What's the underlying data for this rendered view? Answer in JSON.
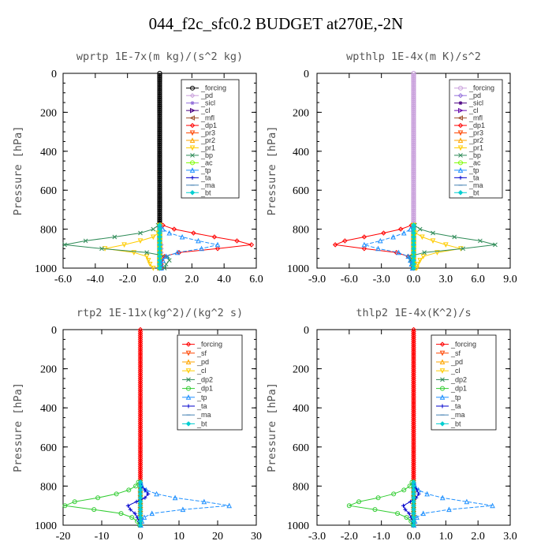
{
  "title": "044_f2c_sfc0.2  BUDGET at270E,-2N",
  "chart_data": [
    {
      "type": "line",
      "title": "wprtp  1E-7x(m kg)/(s^2 kg)",
      "ylabel": "Pressure [hPa]",
      "xlim": [
        -6.0,
        6.0
      ],
      "xticks": [
        -6,
        -4,
        -2,
        0,
        2,
        4,
        6
      ],
      "xticklabels": [
        "-6.0",
        "-4.0",
        "-2.0",
        "0.0",
        "2.0",
        "4.0",
        "6.0"
      ],
      "ylim": [
        0,
        1000
      ],
      "yticks": [
        0,
        200,
        400,
        600,
        800,
        1000
      ],
      "legend_loc": "top-right",
      "y": [
        780,
        800,
        820,
        840,
        860,
        880,
        900,
        920,
        940,
        960,
        980,
        1000
      ],
      "series": [
        {
          "name": "_forcing",
          "color": "#000000",
          "marker": "circle",
          "values": [
            0,
            0,
            0,
            0,
            0,
            0,
            0,
            0,
            0,
            0,
            0,
            0
          ]
        },
        {
          "name": "_pd",
          "color": "#c9a0dc",
          "marker": "diamond",
          "values": [
            0,
            0,
            0,
            0,
            0,
            0.1,
            0.1,
            0.1,
            0.1,
            0.1,
            0.1,
            0.1
          ]
        },
        {
          "name": "_sicl",
          "color": "#9370db",
          "marker": "star",
          "values": [
            0,
            0,
            0,
            0,
            0,
            0,
            0,
            0,
            0,
            0,
            0,
            0
          ]
        },
        {
          "name": "_cl",
          "color": "#4b0082",
          "marker": "triangle-right",
          "values": [
            0,
            0,
            0,
            0,
            0,
            0,
            0,
            0,
            0,
            0,
            0,
            0
          ]
        },
        {
          "name": "_mfl",
          "color": "#a0522d",
          "marker": "triangle-left",
          "values": [
            0,
            0,
            0,
            0,
            0,
            0,
            0,
            0,
            0,
            0,
            0,
            0
          ]
        },
        {
          "name": "_dp1",
          "color": "#ff0000",
          "marker": "diamond",
          "values": [
            0.2,
            0.9,
            2.1,
            3.4,
            4.8,
            5.7,
            3.6,
            1.2,
            0.3,
            0.1,
            0.1,
            0.1
          ]
        },
        {
          "name": "_pr3",
          "color": "#ff4500",
          "marker": "triangle-down",
          "values": [
            0,
            0,
            0,
            0,
            0,
            0,
            0,
            0,
            0,
            0,
            0,
            0
          ]
        },
        {
          "name": "_pr2",
          "color": "#ffa500",
          "marker": "triangle-up",
          "values": [
            0,
            0,
            0,
            0,
            0,
            0,
            0,
            0,
            0,
            0,
            0,
            0
          ]
        },
        {
          "name": "_pr1",
          "color": "#ffcc00",
          "marker": "triangle-down",
          "values": [
            0,
            0,
            -0.1,
            -0.4,
            -1.2,
            -2.2,
            -3.4,
            -1.6,
            -0.8,
            -0.7,
            -0.6,
            -0.4
          ]
        },
        {
          "name": "_bp",
          "color": "#2e8b57",
          "marker": "x",
          "values": [
            -0.1,
            -0.4,
            -1.2,
            -2.8,
            -4.6,
            -5.9,
            -3.6,
            -0.8,
            0.5,
            0.6,
            0.4,
            0.3
          ]
        },
        {
          "name": "_ac",
          "color": "#7cfc00",
          "marker": "circle",
          "values": [
            0,
            0,
            0,
            0,
            0,
            0,
            0,
            0,
            0,
            0,
            0,
            0
          ]
        },
        {
          "name": "_tp",
          "color": "#1e90ff",
          "marker": "triangle-up",
          "values": [
            0,
            0.2,
            0.6,
            1.4,
            2.4,
            3.6,
            2.6,
            1.1,
            0.4,
            0.2,
            0.1,
            0.1
          ]
        },
        {
          "name": "_ta",
          "color": "#0000cd",
          "marker": "plus",
          "values": [
            0,
            0,
            0,
            0,
            0,
            0,
            0,
            0,
            0,
            0,
            0,
            0
          ]
        },
        {
          "name": "_ma",
          "color": "#4682b4",
          "marker": "dash",
          "values": [
            0,
            0,
            0,
            0,
            0,
            0,
            0,
            0,
            0,
            0,
            0,
            0
          ]
        },
        {
          "name": "_bt",
          "color": "#00ced1",
          "marker": "diamond-filled",
          "values": [
            0,
            0,
            0,
            0,
            0,
            0,
            0,
            0,
            0,
            0,
            0,
            0
          ]
        }
      ]
    },
    {
      "type": "line",
      "title": "wpthlp  1E-4x(m K)/s^2",
      "ylabel": "Pressure [hPa]",
      "xlim": [
        -9.0,
        9.0
      ],
      "xticks": [
        -9,
        -6,
        -3,
        0,
        3,
        6,
        9
      ],
      "xticklabels": [
        "-9.0",
        "-6.0",
        "-3.0",
        "0.0",
        "3.0",
        "6.0",
        "9.0"
      ],
      "ylim": [
        0,
        1000
      ],
      "yticks": [
        0,
        200,
        400,
        600,
        800,
        1000
      ],
      "legend_loc": "top-right",
      "y": [
        780,
        800,
        820,
        840,
        860,
        880,
        900,
        920,
        940,
        960,
        980,
        1000
      ],
      "series": [
        {
          "name": "_forcing",
          "color": "#c9a0dc",
          "marker": "circle",
          "values": [
            0,
            0,
            0,
            0,
            0,
            0,
            0,
            0,
            0,
            0,
            0,
            0
          ]
        },
        {
          "name": "_pd",
          "color": "#9370db",
          "marker": "diamond",
          "values": [
            0,
            0,
            0,
            0,
            0,
            0,
            0,
            0,
            0,
            0,
            0,
            0
          ]
        },
        {
          "name": "_sicl",
          "color": "#4b0082",
          "marker": "star",
          "values": [
            0,
            0,
            0,
            0,
            0,
            0,
            0,
            0,
            0,
            0,
            0,
            0
          ]
        },
        {
          "name": "_cl",
          "color": "#6a0dad",
          "marker": "triangle-right",
          "values": [
            0,
            0,
            0,
            0,
            0,
            0,
            0,
            0,
            0,
            0,
            0,
            0
          ]
        },
        {
          "name": "_mfl",
          "color": "#a0522d",
          "marker": "triangle-left",
          "values": [
            0,
            0,
            0,
            0,
            0,
            0,
            0,
            0,
            0,
            0,
            0,
            0
          ]
        },
        {
          "name": "_dp1",
          "color": "#ff0000",
          "marker": "diamond",
          "values": [
            -0.2,
            -1.2,
            -2.8,
            -4.6,
            -6.4,
            -7.3,
            -4.6,
            -1.6,
            -0.5,
            -0.2,
            -0.1,
            -0.1
          ]
        },
        {
          "name": "_pr3",
          "color": "#ff4500",
          "marker": "triangle-down",
          "values": [
            0,
            0,
            0,
            0,
            0,
            0,
            0,
            0,
            0,
            0,
            0,
            0
          ]
        },
        {
          "name": "_pr2",
          "color": "#ffa500",
          "marker": "triangle-up",
          "values": [
            0,
            0,
            0,
            0,
            0,
            0,
            0,
            0,
            0,
            0,
            0,
            0
          ]
        },
        {
          "name": "_pr1",
          "color": "#ffcc00",
          "marker": "triangle-down",
          "values": [
            0,
            0,
            0.2,
            0.8,
            1.8,
            3.0,
            4.4,
            2.2,
            0.9,
            0.6,
            0.4,
            0.3
          ]
        },
        {
          "name": "_bp",
          "color": "#2e8b57",
          "marker": "x",
          "values": [
            0.1,
            0.6,
            1.8,
            3.8,
            6.2,
            7.6,
            4.6,
            1.0,
            -0.4,
            -0.3,
            -0.2,
            -0.1
          ]
        },
        {
          "name": "_ac",
          "color": "#7cfc00",
          "marker": "circle",
          "values": [
            0,
            0,
            0,
            0,
            0,
            0,
            0,
            0,
            0,
            0,
            0,
            0
          ]
        },
        {
          "name": "_tp",
          "color": "#1e90ff",
          "marker": "triangle-up",
          "values": [
            0,
            -0.3,
            -0.9,
            -1.9,
            -3.1,
            -4.6,
            -3.3,
            -1.4,
            -0.5,
            -0.3,
            -0.2,
            -0.1
          ]
        },
        {
          "name": "_ta",
          "color": "#0000cd",
          "marker": "plus",
          "values": [
            0,
            0,
            0,
            0,
            0,
            0,
            0,
            0,
            0,
            0,
            0,
            0
          ]
        },
        {
          "name": "_ma",
          "color": "#4682b4",
          "marker": "dash",
          "values": [
            0,
            0,
            0,
            0,
            0,
            0,
            0,
            0,
            0,
            0,
            0,
            0
          ]
        },
        {
          "name": "_bt",
          "color": "#00ced1",
          "marker": "diamond-filled",
          "values": [
            0,
            0,
            0,
            0,
            0,
            0,
            0,
            0,
            0,
            0,
            0,
            0
          ]
        }
      ]
    },
    {
      "type": "line",
      "title": "rtp2  1E-11x(kg^2)/(kg^2 s)",
      "ylabel": "Pressure [hPa]",
      "xlim": [
        -20,
        30
      ],
      "xticks": [
        -20,
        -10,
        0,
        10,
        20,
        30
      ],
      "xticklabels": [
        "-20",
        "-10",
        "0",
        "10",
        "20",
        "30"
      ],
      "ylim": [
        0,
        1000
      ],
      "yticks": [
        0,
        200,
        400,
        600,
        800,
        1000
      ],
      "legend_loc": "top-right",
      "y": [
        780,
        800,
        820,
        840,
        860,
        880,
        900,
        920,
        940,
        960,
        980,
        1000
      ],
      "series": [
        {
          "name": "_forcing",
          "color": "#ff0000",
          "marker": "diamond",
          "values": [
            0,
            0,
            0,
            0,
            0,
            0,
            0,
            0,
            0,
            0,
            0,
            0
          ]
        },
        {
          "name": "_sf",
          "color": "#ff4500",
          "marker": "triangle-down",
          "values": [
            0,
            0,
            0,
            0,
            0,
            0,
            0,
            0,
            0,
            0,
            0,
            0
          ]
        },
        {
          "name": "_pd",
          "color": "#ffa500",
          "marker": "triangle-up",
          "values": [
            0,
            0,
            0,
            0,
            0,
            0,
            0,
            0,
            0,
            0,
            0,
            0
          ]
        },
        {
          "name": "_cl",
          "color": "#ffcc00",
          "marker": "triangle-down",
          "values": [
            0,
            0,
            0,
            0,
            0,
            0,
            0,
            0,
            0,
            0,
            0,
            0
          ]
        },
        {
          "name": "_dp2",
          "color": "#2e8b57",
          "marker": "x",
          "values": [
            0,
            0,
            0,
            0,
            0,
            0,
            0,
            0,
            0,
            0,
            0,
            0
          ]
        },
        {
          "name": "_dp1",
          "color": "#32cd32",
          "marker": "circle",
          "values": [
            -0.5,
            -1.2,
            -3.0,
            -6.2,
            -11.0,
            -17.0,
            -19.5,
            -12.0,
            -5.0,
            -2.2,
            -0.8,
            -0.2
          ]
        },
        {
          "name": "_tp",
          "color": "#1e90ff",
          "marker": "triangle-up",
          "values": [
            0.1,
            0.4,
            1.5,
            4.2,
            9.0,
            16.5,
            23.0,
            11.0,
            3.0,
            1.0,
            0.4,
            0.1
          ]
        },
        {
          "name": "_ta",
          "color": "#0000cd",
          "marker": "plus",
          "values": [
            0,
            0.3,
            1.2,
            2.0,
            1.2,
            -1.0,
            -3.2,
            -2.6,
            -1.4,
            -0.8,
            -0.4,
            -0.2
          ]
        },
        {
          "name": "_ma",
          "color": "#4682b4",
          "marker": "dash",
          "values": [
            0,
            0,
            0,
            0,
            0,
            0,
            0,
            0,
            0,
            0,
            0,
            0
          ]
        },
        {
          "name": "_bt",
          "color": "#00ced1",
          "marker": "diamond-filled",
          "values": [
            0,
            0,
            0,
            0,
            0,
            0,
            0,
            0,
            0,
            0,
            0,
            0
          ]
        }
      ]
    },
    {
      "type": "line",
      "title": "thlp2  1E-4x(K^2)/s",
      "ylabel": "Pressure [hPa]",
      "xlim": [
        -3.0,
        3.0
      ],
      "xticks": [
        -3,
        -2,
        -1,
        0,
        1,
        2,
        3
      ],
      "xticklabels": [
        "-3.0",
        "-2.0",
        "-1.0",
        "0.0",
        "1.0",
        "2.0",
        "3.0"
      ],
      "ylim": [
        0,
        1000
      ],
      "yticks": [
        0,
        200,
        400,
        600,
        800,
        1000
      ],
      "legend_loc": "top-right",
      "y": [
        780,
        800,
        820,
        840,
        860,
        880,
        900,
        920,
        940,
        960,
        980,
        1000
      ],
      "series": [
        {
          "name": "_forcing",
          "color": "#ff0000",
          "marker": "diamond",
          "values": [
            0,
            0,
            0,
            0,
            0,
            0,
            0,
            0,
            0,
            0,
            0,
            0
          ]
        },
        {
          "name": "_sf",
          "color": "#ff4500",
          "marker": "triangle-down",
          "values": [
            0,
            0,
            0,
            0,
            0,
            0,
            0,
            0,
            0,
            0,
            0,
            0
          ]
        },
        {
          "name": "_pd",
          "color": "#ffa500",
          "marker": "triangle-up",
          "values": [
            0,
            0,
            0,
            0,
            0,
            0,
            0,
            0,
            0,
            0,
            0,
            0
          ]
        },
        {
          "name": "_cl",
          "color": "#ffcc00",
          "marker": "triangle-down",
          "values": [
            0,
            0,
            0,
            0,
            0,
            0,
            0,
            0,
            0,
            0,
            0,
            0
          ]
        },
        {
          "name": "_dp2",
          "color": "#2e8b57",
          "marker": "x",
          "values": [
            0,
            0,
            0,
            0,
            0,
            0,
            0,
            0,
            0,
            0,
            0,
            0
          ]
        },
        {
          "name": "_dp1",
          "color": "#32cd32",
          "marker": "circle",
          "values": [
            -0.05,
            -0.12,
            -0.3,
            -0.62,
            -1.1,
            -1.7,
            -2.0,
            -1.2,
            -0.5,
            -0.22,
            -0.08,
            -0.02
          ]
        },
        {
          "name": "_tp",
          "color": "#1e90ff",
          "marker": "triangle-up",
          "values": [
            0.01,
            0.04,
            0.15,
            0.42,
            0.9,
            1.65,
            2.45,
            1.1,
            0.3,
            0.1,
            0.04,
            0.01
          ]
        },
        {
          "name": "_ta",
          "color": "#0000cd",
          "marker": "plus",
          "values": [
            0,
            0.03,
            0.1,
            0.16,
            0.08,
            -0.1,
            -0.32,
            -0.26,
            -0.14,
            -0.08,
            -0.04,
            -0.02
          ]
        },
        {
          "name": "_ma",
          "color": "#4682b4",
          "marker": "dash",
          "values": [
            0,
            0,
            0,
            0,
            0,
            0,
            0,
            0,
            0,
            0,
            0,
            0
          ]
        },
        {
          "name": "_bt",
          "color": "#00ced1",
          "marker": "diamond-filled",
          "values": [
            0,
            0,
            0,
            0,
            0,
            0,
            0,
            0,
            0,
            0,
            0,
            0
          ]
        }
      ]
    }
  ]
}
